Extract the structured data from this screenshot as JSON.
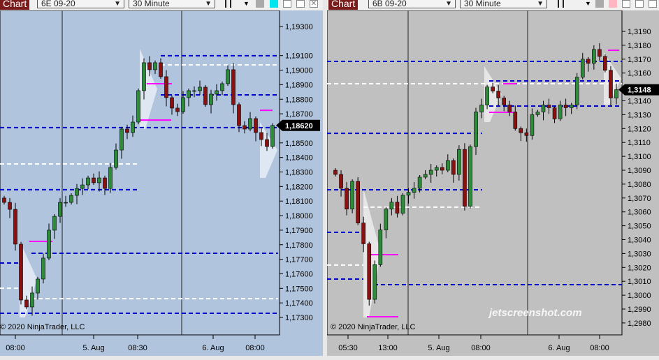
{
  "charts": [
    {
      "tab": "Chart",
      "instrument": "6E 09-20",
      "period": "30 Minute",
      "bg": "#b0c4de",
      "swatch": "#00e5ee",
      "copyright": "© 2020 NinjaTrader, LLC",
      "current_price": "1,18620",
      "price_ticks": [
        "1,19300",
        "1,19100",
        "1,19000",
        "1,18900",
        "1,18800",
        "1,18700",
        "1,18500",
        "1,18400",
        "1,18300",
        "1,18200",
        "1,18100",
        "1,18000",
        "1,17900",
        "1,17800",
        "1,17700",
        "1,17600",
        "1,17500",
        "1,17400",
        "1,17300"
      ],
      "time_ticks": [
        "08:00",
        "5. Aug",
        "08:30",
        "6. Aug",
        "08:00"
      ],
      "closes": [
        1.18091,
        1.18043,
        1.17804,
        1.1742,
        1.17372,
        1.17468,
        1.17564,
        1.17708,
        1.179,
        1.17995,
        1.18091,
        1.18091,
        1.18139,
        1.18187,
        1.18211,
        1.18259,
        1.18226,
        1.18259,
        1.18187,
        1.18331,
        1.18451,
        1.18595,
        1.18571,
        1.18643,
        1.18859,
        1.19051,
        1.19003,
        1.19051,
        1.18955,
        1.18811,
        1.18739,
        1.18715,
        1.18811,
        1.18859,
        1.18859,
        1.18883,
        1.18763,
        1.18835,
        1.18859,
        1.18907,
        1.19003,
        1.18763,
        1.18619,
        1.18595,
        1.18667,
        1.18571,
        1.18523,
        1.18475,
        1.1862
      ],
      "levels": [
        {
          "type": "blue",
          "price": 1.19099
        },
        {
          "type": "blue",
          "price": 1.1883
        },
        {
          "type": "blue",
          "price": 1.18605
        },
        {
          "type": "blue",
          "price": 1.18178
        },
        {
          "type": "blue",
          "price": 1.17741
        },
        {
          "type": "blue",
          "price": 1.17674
        },
        {
          "type": "blue",
          "price": 1.17329
        },
        {
          "type": "white",
          "price": 1.19036
        },
        {
          "type": "white",
          "price": 1.18355
        },
        {
          "type": "white",
          "price": 1.17501
        },
        {
          "type": "white",
          "price": 1.17429
        },
        {
          "type": "magenta",
          "price": 1.18907
        },
        {
          "type": "magenta",
          "price": 1.18657
        },
        {
          "type": "magenta",
          "price": 1.18724
        },
        {
          "type": "magenta",
          "price": 1.17823
        }
      ]
    },
    {
      "tab": "Chart",
      "instrument": "6B 09-20",
      "period": "30 Minute",
      "bg": "#c0c0c0",
      "swatch": "#ffb6c1",
      "copyright": "© 2020 NinjaTrader, LLC",
      "current_price": "1,3148",
      "price_ticks": [
        "1,3190",
        "1,3180",
        "1,3170",
        "1,3160",
        "1,3140",
        "1,3130",
        "1,3120",
        "1,3110",
        "1,3100",
        "1,3090",
        "1,3080",
        "1,3070",
        "1,3060",
        "1,3050",
        "1,3040",
        "1,3030",
        "1,3020",
        "1,3010",
        "1,3000",
        "1,2990",
        "1,2980"
      ],
      "time_ticks": [
        "05:30",
        "13:00",
        "5. Aug",
        "08:00",
        "6. Aug",
        "08:00"
      ],
      "closes": [
        1.3087,
        1.3077,
        1.3062,
        1.3082,
        1.3052,
        1.3037,
        1.2997,
        1.3022,
        1.3047,
        1.3062,
        1.3067,
        1.3059,
        1.3072,
        1.3074,
        1.3077,
        1.3085,
        1.3087,
        1.309,
        1.3092,
        1.309,
        1.3097,
        1.3087,
        1.3105,
        1.3064,
        1.3107,
        1.3132,
        1.3137,
        1.315,
        1.3147,
        1.3142,
        1.3137,
        1.3132,
        1.312,
        1.3117,
        1.3115,
        1.313,
        1.3132,
        1.3137,
        1.3135,
        1.3127,
        1.3137,
        1.3135,
        1.3137,
        1.3157,
        1.317,
        1.3167,
        1.3177,
        1.3172,
        1.3162,
        1.3142,
        1.3148
      ],
      "levels": [
        {
          "type": "blue",
          "price": 1.31684
        },
        {
          "type": "blue",
          "price": 1.31543
        },
        {
          "type": "blue",
          "price": 1.31362
        },
        {
          "type": "blue",
          "price": 1.31166
        },
        {
          "type": "blue",
          "price": 1.30759
        },
        {
          "type": "blue",
          "price": 1.30453
        },
        {
          "type": "blue",
          "price": 1.30116
        },
        {
          "type": "blue",
          "price": 1.30076
        },
        {
          "type": "white",
          "price": 1.31523
        },
        {
          "type": "white",
          "price": 1.30634
        },
        {
          "type": "white",
          "price": 1.30217
        },
        {
          "type": "magenta",
          "price": 1.31764
        },
        {
          "type": "magenta",
          "price": 1.31523
        },
        {
          "type": "magenta",
          "price": 1.31317
        },
        {
          "type": "magenta",
          "price": 1.30292
        },
        {
          "type": "magenta",
          "price": 1.29845
        }
      ]
    }
  ],
  "watermark": "jetscreenshot.com"
}
